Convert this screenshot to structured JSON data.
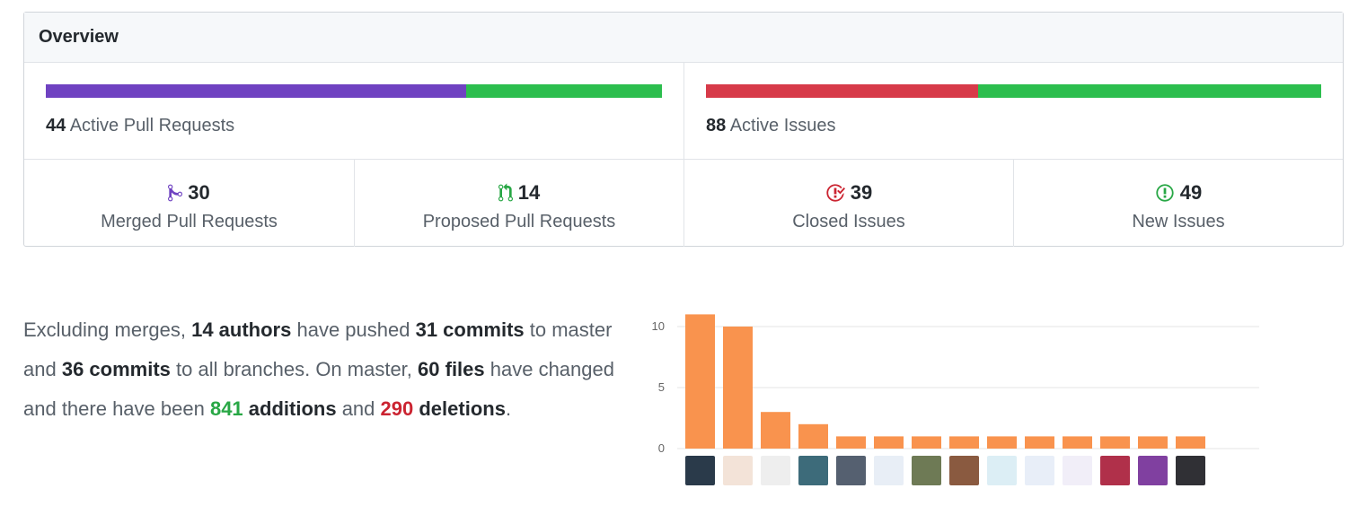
{
  "overview": {
    "title": "Overview",
    "pull_requests": {
      "active_count": "44",
      "active_label": "Active Pull Requests",
      "merged_fraction": 0.682,
      "colors": {
        "merged": "#6f42c1",
        "open": "#2cbe4e"
      }
    },
    "issues": {
      "active_count": "88",
      "active_label": "Active Issues",
      "closed_fraction": 0.443,
      "colors": {
        "closed": "#d73a49",
        "new": "#2cbe4e"
      }
    },
    "stats": [
      {
        "count": "30",
        "label": "Merged Pull Requests",
        "icon": "git-merge-icon",
        "color": "#6f42c1"
      },
      {
        "count": "14",
        "label": "Proposed Pull Requests",
        "icon": "git-pull-request-icon",
        "color": "#28a745"
      },
      {
        "count": "39",
        "label": "Closed Issues",
        "icon": "issue-closed-icon",
        "color": "#cb2431"
      },
      {
        "count": "49",
        "label": "New Issues",
        "icon": "issue-opened-icon",
        "color": "#28a745"
      }
    ]
  },
  "summary": {
    "t1": "Excluding merges, ",
    "authors": "14 authors",
    "t2": " have pushed ",
    "master_commits": "31 commits",
    "t3": " to master and ",
    "all_commits": "36 commits",
    "t4": " to all branches. On master, ",
    "files": "60 files",
    "t5": " have changed and there have been ",
    "additions_num": "841",
    "additions_word": "additions",
    "t6": " and ",
    "deletions_num": "290",
    "deletions_word": "deletions",
    "t7": "."
  },
  "chart_data": {
    "type": "bar",
    "bar_color": "#f9934e",
    "y_ticks": [
      "10",
      "5",
      "0"
    ],
    "ylim": [
      0,
      11
    ],
    "values": [
      11,
      10,
      3,
      2,
      1,
      1,
      1,
      1,
      1,
      1,
      1,
      1,
      1,
      1
    ],
    "avatar_colors": [
      "#2a3a4a",
      "#f3e3d8",
      "#eeeeee",
      "#3d6b7a",
      "#556070",
      "#e8eef6",
      "#6e7a55",
      "#8a5a40",
      "#dceef5",
      "#e8eef8",
      "#f1eef8",
      "#b0304a",
      "#8040a0",
      "#303035"
    ]
  }
}
